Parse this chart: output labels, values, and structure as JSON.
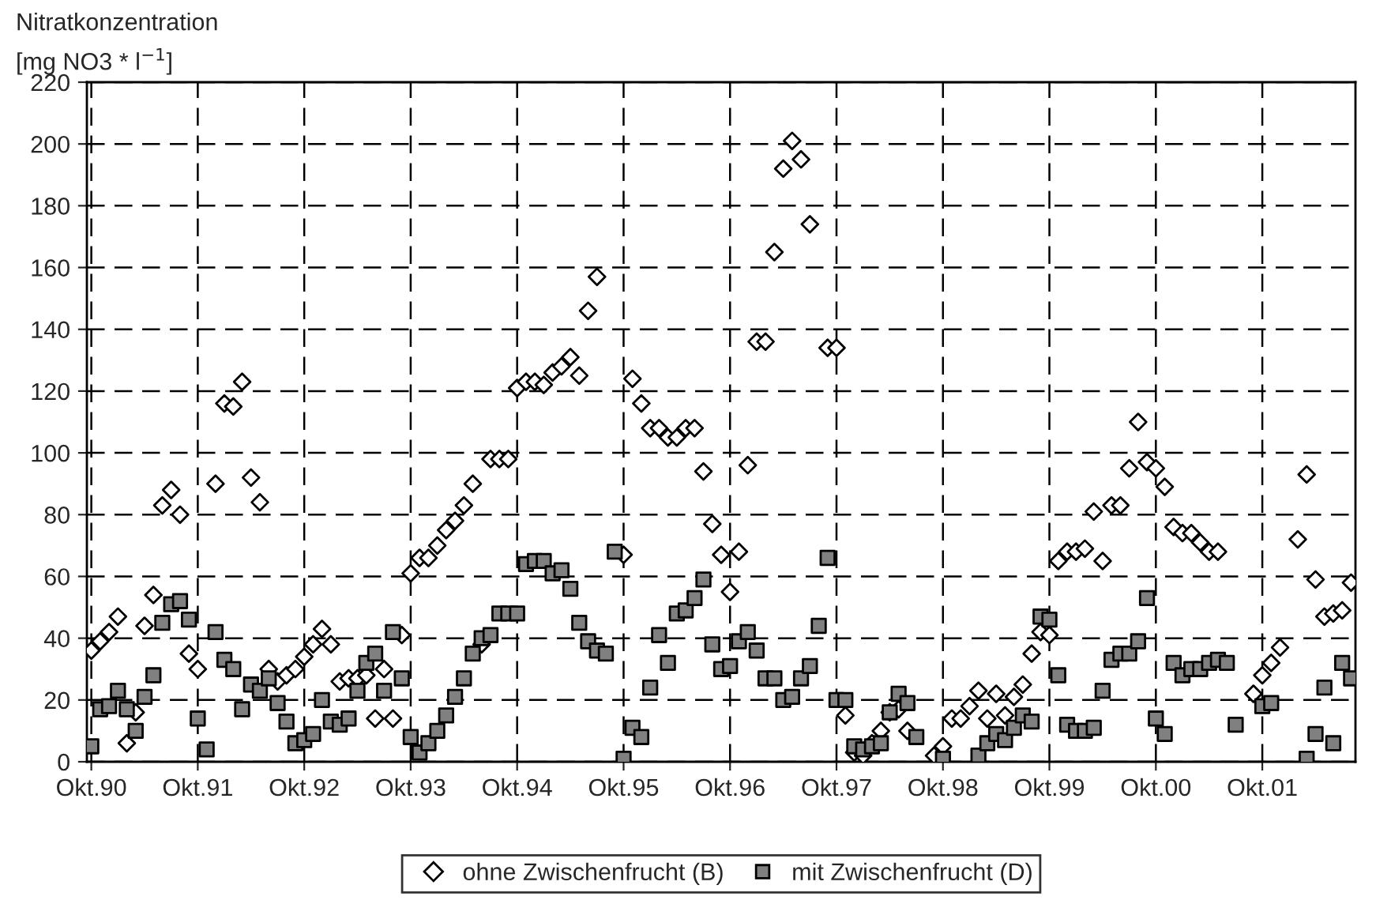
{
  "chart_data": {
    "type": "scatter",
    "ylabel": "Nitratkonzentration\n[mg NO3 * l$^{−1}$]",
    "categories": [
      "Okt.90",
      null,
      null,
      null,
      null,
      null,
      null,
      null,
      null,
      null,
      null,
      null,
      "Okt.91",
      null,
      null,
      null,
      null,
      null,
      null,
      null,
      null,
      null,
      null,
      null,
      "Okt.92",
      null,
      null,
      null,
      null,
      null,
      null,
      null,
      null,
      null,
      null,
      null,
      "Okt.93",
      null,
      null,
      null,
      null,
      null,
      null,
      null,
      null,
      null,
      null,
      null,
      "Okt.94",
      null,
      null,
      null,
      null,
      null,
      null,
      null,
      null,
      null,
      null,
      null,
      "Okt.95",
      null,
      null,
      null,
      null,
      null,
      null,
      null,
      null,
      null,
      null,
      null,
      "Okt.96",
      null,
      null,
      null,
      null,
      null,
      null,
      null,
      null,
      null,
      null,
      null,
      "Okt.97",
      null,
      null,
      null,
      null,
      null,
      null,
      null,
      null,
      null,
      null,
      null,
      "Okt.98",
      null,
      null,
      null,
      null,
      null,
      null,
      null,
      null,
      null,
      null,
      null,
      "Okt.99",
      null,
      null,
      null,
      null,
      null,
      null,
      null,
      null,
      null,
      null,
      null,
      "Okt.00",
      null,
      null,
      null,
      null,
      null,
      null,
      null,
      null,
      null,
      null,
      null,
      "Okt.01",
      null,
      null,
      null,
      null,
      null,
      null,
      null,
      null,
      null,
      null
    ],
    "ylim": [
      0,
      220
    ],
    "yticks": [
      0,
      20,
      40,
      60,
      80,
      100,
      120,
      140,
      160,
      180,
      200,
      220
    ],
    "grid": true,
    "legend": "bottom",
    "series": [
      {
        "name": "ohne Zwischenfrucht (B)",
        "color": "#ffffff",
        "marker": "diamond",
        "values": [
          36,
          39,
          42,
          47,
          6,
          16,
          44,
          54,
          83,
          88,
          80,
          35,
          30,
          null,
          90,
          116,
          115,
          123,
          92,
          84,
          30,
          26,
          28,
          30,
          34,
          38,
          43,
          38,
          26,
          27,
          27,
          28,
          14,
          30,
          14,
          41,
          61,
          66,
          66,
          70,
          75,
          78,
          83,
          90,
          38,
          98,
          98,
          98,
          121,
          123,
          123,
          122,
          126,
          128,
          131,
          125,
          146,
          157,
          null,
          null,
          67,
          124,
          116,
          108,
          108,
          105,
          105,
          108,
          108,
          94,
          77,
          67,
          55,
          68,
          96,
          136,
          136,
          165,
          192,
          201,
          195,
          174,
          null,
          134,
          134,
          15,
          3,
          2,
          6,
          10,
          16,
          17,
          10,
          null,
          null,
          2,
          5,
          14,
          14,
          18,
          23,
          14,
          22,
          15,
          21,
          25,
          35,
          42,
          41,
          65,
          68,
          68,
          69,
          81,
          65,
          83,
          83,
          95,
          110,
          97,
          95,
          89,
          76,
          74,
          74,
          71,
          68,
          68,
          null,
          null,
          null,
          22,
          28,
          32,
          37,
          null,
          72,
          93,
          59,
          47,
          48,
          49,
          58
        ]
      },
      {
        "name": "mit Zwischenfrucht (D)",
        "color": "#808080",
        "marker": "square",
        "values": [
          5,
          17,
          18,
          23,
          17,
          10,
          21,
          28,
          45,
          51,
          52,
          46,
          14,
          4,
          42,
          33,
          30,
          17,
          25,
          23,
          27,
          19,
          13,
          6,
          7,
          9,
          20,
          13,
          12,
          14,
          23,
          32,
          35,
          23,
          42,
          27,
          8,
          3,
          6,
          10,
          15,
          21,
          27,
          35,
          40,
          41,
          48,
          48,
          48,
          64,
          65,
          65,
          61,
          62,
          56,
          45,
          39,
          36,
          35,
          68,
          1,
          11,
          8,
          24,
          41,
          32,
          48,
          49,
          53,
          59,
          38,
          30,
          31,
          39,
          42,
          36,
          27,
          27,
          20,
          21,
          27,
          31,
          44,
          66,
          20,
          20,
          5,
          4,
          5,
          6,
          16,
          22,
          19,
          8,
          null,
          null,
          1,
          null,
          null,
          null,
          2,
          6,
          9,
          7,
          11,
          15,
          13,
          47,
          46,
          28,
          12,
          10,
          10,
          11,
          23,
          33,
          35,
          35,
          39,
          53,
          14,
          9,
          32,
          28,
          30,
          30,
          32,
          33,
          32,
          12,
          null,
          null,
          18,
          19,
          null,
          null,
          null,
          1,
          9,
          24,
          6,
          32,
          27
        ]
      }
    ]
  }
}
